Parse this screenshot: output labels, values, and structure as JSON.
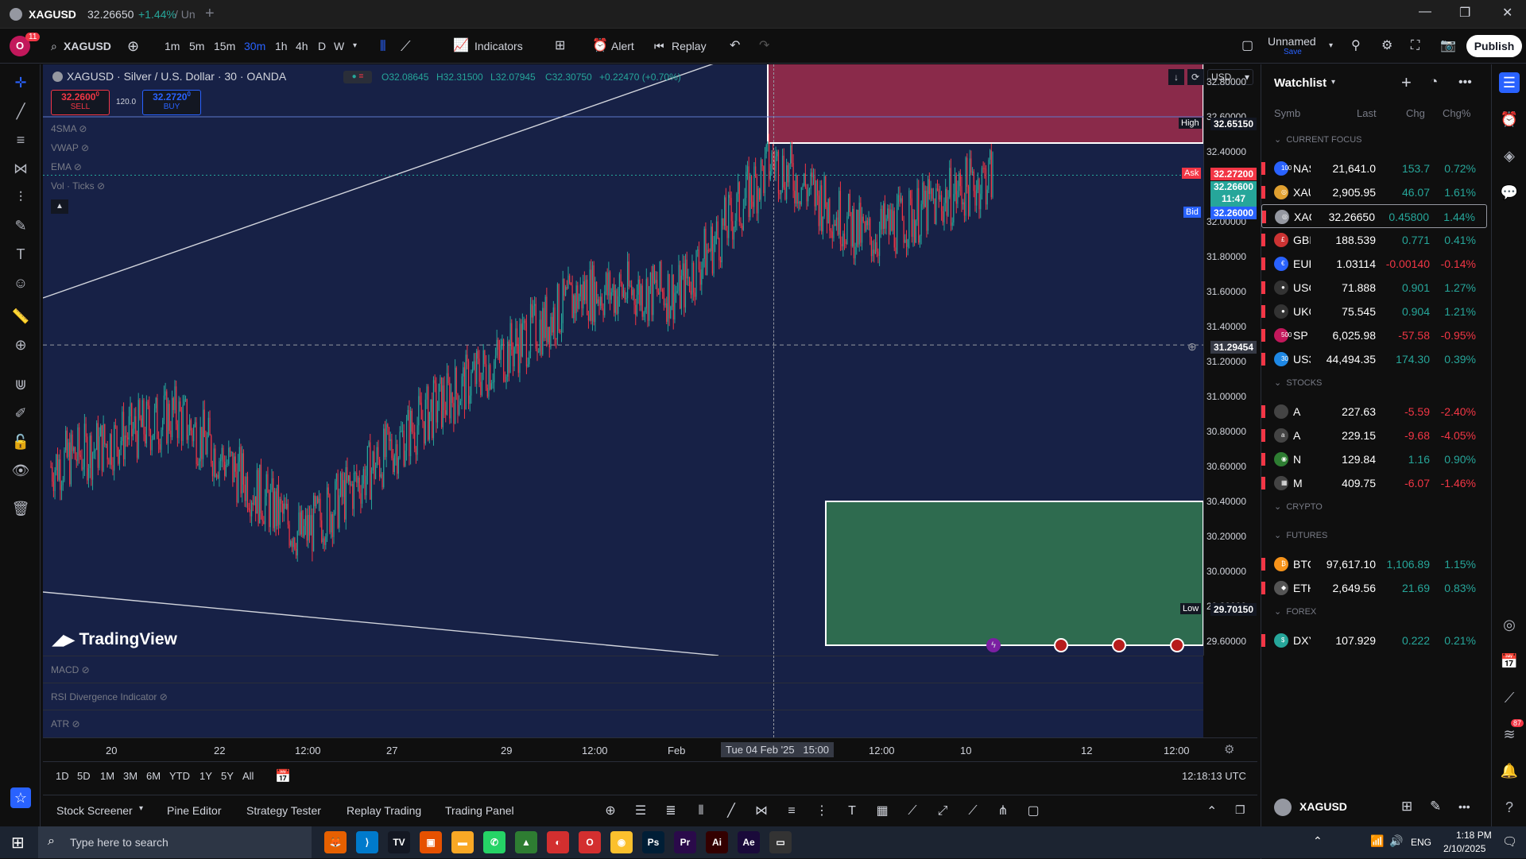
{
  "titlebar": {
    "symbol": "XAGUSD",
    "price": "32.26650",
    "change": "+1.44%",
    "suffix": "/ Un"
  },
  "toolbar": {
    "symbol": "XAGUSD",
    "badge": "11",
    "intervals": [
      "1m",
      "5m",
      "15m",
      "30m",
      "1h",
      "4h",
      "D",
      "W"
    ],
    "active_interval": "30m",
    "indicators": "Indicators",
    "alert": "Alert",
    "replay": "Replay",
    "layout_name": "Unnamed",
    "layout_sub": "Save",
    "publish": "Publish"
  },
  "legend": {
    "title": "XAGUSD · Silver / U.S. Dollar · 30 · OANDA",
    "o": "O32.08645",
    "h": "H32.31500",
    "l": "L32.07945",
    "c": "C32.30750",
    "chg": "+0.22470 (+0.70%)"
  },
  "trade": {
    "sell_price": "32.2600",
    "sell_small": "0",
    "sell_label": "SELL",
    "spread": "120.0",
    "buy_price": "32.2720",
    "buy_small": "0",
    "buy_label": "BUY"
  },
  "studies": [
    "4SMA",
    "VWAP",
    "EMA",
    "Vol · Ticks"
  ],
  "price_scale": {
    "currency": "USD",
    "labels": [
      "32.80000",
      "32.60000",
      "32.40000",
      "32.00000",
      "31.80000",
      "31.60000",
      "31.40000",
      "31.20000",
      "31.00000",
      "30.80000",
      "30.60000",
      "30.40000",
      "30.20000",
      "30.00000",
      "29.80000",
      "29.60000"
    ],
    "high_tag": "High",
    "high": "32.65150",
    "ask_tag": "Ask",
    "ask": "32.27200",
    "last": "32.26600",
    "countdown": "11:47",
    "bid_tag": "Bid",
    "bid": "32.26000",
    "cross": "31.29454",
    "low_tag": "Low",
    "low": "29.70150"
  },
  "time_axis": {
    "labels": [
      "20",
      "22",
      "12:00",
      "27",
      "29",
      "12:00",
      "Feb",
      "12:00",
      "10",
      "12",
      "12:00"
    ],
    "crosshair": "Tue 04 Feb '25   15:00"
  },
  "watermark": "TradingView",
  "panes": [
    "MACD",
    "RSI Divergence Indicator",
    "ATR"
  ],
  "ranges": [
    "1D",
    "5D",
    "1M",
    "3M",
    "6M",
    "YTD",
    "1Y",
    "5Y",
    "All"
  ],
  "clock": "12:18:13 UTC",
  "bottom_tabs": [
    "Stock Screener",
    "Pine Editor",
    "Strategy Tester",
    "Replay Trading",
    "Trading Panel"
  ],
  "watchlist": {
    "title": "Watchlist",
    "cols": [
      "Symb",
      "Last",
      "Chg",
      "Chg%"
    ],
    "sections": [
      {
        "name": "CURRENT FOCUS",
        "rows": [
          {
            "sym": "NAS",
            "last": "21,641.0",
            "chg": "153.7",
            "pct": "0.72%",
            "dir": "pos",
            "icon": "100",
            "color": "#2962ff"
          },
          {
            "sym": "XAU",
            "last": "2,905.95",
            "chg": "46.07",
            "pct": "1.61%",
            "dir": "pos",
            "icon": "◎",
            "color": "#e0a030"
          },
          {
            "sym": "XAG",
            "last": "32.26650",
            "chg": "0.45800",
            "pct": "1.44%",
            "dir": "pos",
            "icon": "◎",
            "color": "#9598a1",
            "selected": true
          },
          {
            "sym": "GBI",
            "last": "188.539",
            "chg": "0.771",
            "pct": "0.41%",
            "dir": "pos",
            "icon": "£",
            "color": "#c33"
          },
          {
            "sym": "EUR",
            "last": "1.03114",
            "chg": "-0.00140",
            "pct": "-0.14%",
            "dir": "neg",
            "icon": "€",
            "color": "#2962ff"
          },
          {
            "sym": "USO",
            "last": "71.888",
            "chg": "0.901",
            "pct": "1.27%",
            "dir": "pos",
            "icon": "●",
            "color": "#333"
          },
          {
            "sym": "UKO",
            "last": "75.545",
            "chg": "0.904",
            "pct": "1.21%",
            "dir": "pos",
            "icon": "●",
            "color": "#333"
          },
          {
            "sym": "SP",
            "last": "6,025.98",
            "chg": "-57.58",
            "pct": "-0.95%",
            "dir": "neg",
            "icon": "500",
            "color": "#c2185b"
          },
          {
            "sym": "US3",
            "last": "44,494.35",
            "chg": "174.30",
            "pct": "0.39%",
            "dir": "pos",
            "icon": "30",
            "color": "#1e88e5"
          }
        ]
      },
      {
        "name": "STOCKS",
        "rows": [
          {
            "sym": "A",
            "last": "227.63",
            "chg": "-5.59",
            "pct": "-2.40%",
            "dir": "neg",
            "icon": "",
            "color": "#444"
          },
          {
            "sym": "A",
            "last": "229.15",
            "chg": "-9.68",
            "pct": "-4.05%",
            "dir": "neg",
            "icon": "a",
            "color": "#444"
          },
          {
            "sym": "N",
            "last": "129.84",
            "chg": "1.16",
            "pct": "0.90%",
            "dir": "pos",
            "icon": "◉",
            "color": "#2e7d32"
          },
          {
            "sym": "M",
            "last": "409.75",
            "chg": "-6.07",
            "pct": "-1.46%",
            "dir": "neg",
            "icon": "▦",
            "color": "#444"
          }
        ]
      },
      {
        "name": "CRYPTO",
        "rows": []
      },
      {
        "name": "FUTURES",
        "rows": [
          {
            "sym": "BTC",
            "last": "97,617.10",
            "chg": "1,106.89",
            "pct": "1.15%",
            "dir": "pos",
            "icon": "₿",
            "color": "#f7931a"
          },
          {
            "sym": "ETH",
            "last": "2,649.56",
            "chg": "21.69",
            "pct": "0.83%",
            "dir": "pos",
            "icon": "◆",
            "color": "#555"
          }
        ]
      },
      {
        "name": "FOREX",
        "rows": [
          {
            "sym": "DXY",
            "last": "107.929",
            "chg": "0.222",
            "pct": "0.21%",
            "dir": "pos",
            "icon": "$",
            "color": "#26a69a"
          }
        ]
      }
    ],
    "footer_symbol": "XAGUSD",
    "notif": "87"
  },
  "taskbar": {
    "search": "Type here to search",
    "lang": "ENG",
    "time": "1:18 PM",
    "date": "2/10/2025"
  },
  "chart_data": {
    "type": "candlestick",
    "symbol": "XAGUSD",
    "interval": "30",
    "ylim": [
      29.6,
      32.8
    ],
    "x": [
      "20",
      "22",
      "12:00",
      "27",
      "29",
      "12:00",
      "Feb",
      "12:00",
      "10",
      "12",
      "12:00"
    ],
    "trend": [
      [
        30.6,
        20
      ],
      [
        30.9,
        40
      ],
      [
        30.2,
        60
      ],
      [
        30.9,
        80
      ],
      [
        31.6,
        105
      ],
      [
        31.6,
        120
      ],
      [
        32.35,
        135
      ],
      [
        31.9,
        150
      ],
      [
        32.27,
        170
      ]
    ],
    "zones": [
      {
        "name": "supply",
        "from": 32.45,
        "to": 32.9
      },
      {
        "name": "demand",
        "from": 29.55,
        "to": 30.4
      }
    ]
  }
}
